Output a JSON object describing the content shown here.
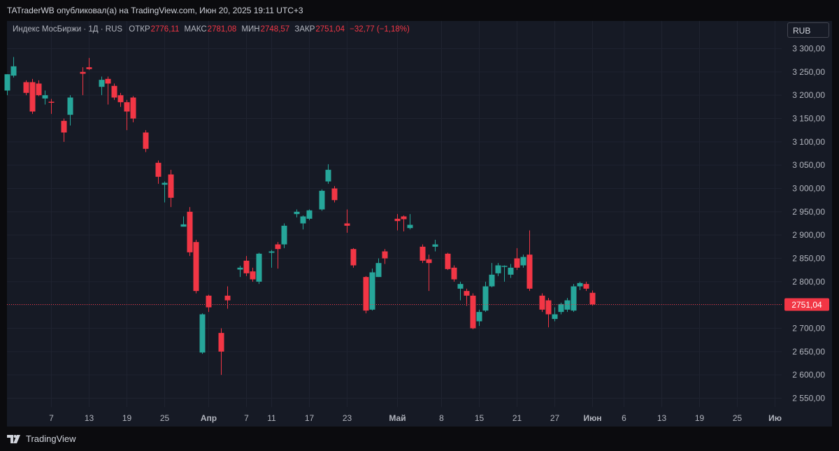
{
  "header": {
    "publisher_line": "TATraderWB опубликовал(а) на TradingView.com, Июн 20, 2025 19:11 UTC+3"
  },
  "legend": {
    "symbol": "Индекс МосБиржи · 1Д · RUS",
    "open_label": "ОТКР",
    "open_value": "2776,11",
    "high_label": "МАКС",
    "high_value": "2781,08",
    "low_label": "МИН",
    "low_value": "2748,57",
    "close_label": "ЗАКР",
    "close_value": "2751,04",
    "change": "−32,77 (−1,18%)"
  },
  "currency_button": "RUB",
  "price_label": "2751,04",
  "footer": {
    "brand": "TradingView"
  },
  "colors": {
    "up": "#26a69a",
    "down": "#f23645",
    "background": "#161a25",
    "grid": "#1f2330",
    "axis_text": "#b2b5be"
  },
  "chart_data": {
    "type": "candlestick",
    "ylim": [
      2520,
      3330
    ],
    "yticks": [
      2550,
      2600,
      2650,
      2700,
      2750,
      2800,
      2850,
      2900,
      2950,
      3000,
      3050,
      3100,
      3150,
      3200,
      3250,
      3300
    ],
    "ytick_labels": [
      "2 550,00",
      "2 600,00",
      "2 650,00",
      "2 700,00",
      "2 750,00",
      "2 800,00",
      "2 850,00",
      "2 900,00",
      "2 950,00",
      "3 000,00",
      "3 050,00",
      "3 100,00",
      "3 150,00",
      "3 200,00",
      "3 250,00",
      "3 300,00"
    ],
    "xticks": [
      {
        "day": 7,
        "label": "7",
        "bold": false
      },
      {
        "day": 13,
        "label": "13",
        "bold": false
      },
      {
        "day": 19,
        "label": "19",
        "bold": false
      },
      {
        "day": 25,
        "label": "25",
        "bold": false
      },
      {
        "day": 32,
        "label": "Апр",
        "bold": true
      },
      {
        "day": 38,
        "label": "7",
        "bold": false
      },
      {
        "day": 42,
        "label": "11",
        "bold": false
      },
      {
        "day": 48,
        "label": "17",
        "bold": false
      },
      {
        "day": 54,
        "label": "23",
        "bold": false
      },
      {
        "day": 62,
        "label": "Май",
        "bold": true
      },
      {
        "day": 69,
        "label": "8",
        "bold": false
      },
      {
        "day": 75,
        "label": "15",
        "bold": false
      },
      {
        "day": 81,
        "label": "21",
        "bold": false
      },
      {
        "day": 87,
        "label": "27",
        "bold": false
      },
      {
        "day": 93,
        "label": "Июн",
        "bold": true
      },
      {
        "day": 98,
        "label": "6",
        "bold": false
      },
      {
        "day": 104,
        "label": "13",
        "bold": false
      },
      {
        "day": 110,
        "label": "19",
        "bold": false
      },
      {
        "day": 116,
        "label": "25",
        "bold": false
      },
      {
        "day": 122,
        "label": "Ию",
        "bold": true
      }
    ],
    "last_close": 2751.04,
    "candles": [
      {
        "day": 0,
        "o": 3210,
        "h": 3245,
        "c": 3245,
        "l": 3200
      },
      {
        "day": 1,
        "o": 3242,
        "h": 3282,
        "c": 3262,
        "l": 3238
      },
      {
        "day": 3,
        "o": 3228,
        "h": 3232,
        "c": 3205,
        "l": 3200
      },
      {
        "day": 4,
        "o": 3228,
        "h": 3235,
        "c": 3165,
        "l": 3160
      },
      {
        "day": 5,
        "o": 3225,
        "h": 3232,
        "c": 3200,
        "l": 3198
      },
      {
        "day": 6,
        "o": 3193,
        "h": 3210,
        "c": 3200,
        "l": 3180
      },
      {
        "day": 7,
        "o": 3186,
        "h": 3192,
        "c": 3185,
        "l": 3160
      },
      {
        "day": 9,
        "o": 3145,
        "h": 3150,
        "c": 3120,
        "l": 3100
      },
      {
        "day": 10,
        "o": 3158,
        "h": 3200,
        "c": 3195,
        "l": 3135
      },
      {
        "day": 12,
        "o": 3250,
        "h": 3260,
        "c": 3246,
        "l": 3200
      },
      {
        "day": 13,
        "o": 3260,
        "h": 3280,
        "c": 3256,
        "l": 3254
      },
      {
        "day": 15,
        "o": 3218,
        "h": 3240,
        "c": 3233,
        "l": 3200
      },
      {
        "day": 16,
        "o": 3235,
        "h": 3240,
        "c": 3225,
        "l": 3180
      },
      {
        "day": 17,
        "o": 3220,
        "h": 3225,
        "c": 3195,
        "l": 3190
      },
      {
        "day": 18,
        "o": 3200,
        "h": 3205,
        "c": 3185,
        "l": 3175
      },
      {
        "day": 19,
        "o": 3185,
        "h": 3190,
        "c": 3165,
        "l": 3125
      },
      {
        "day": 20,
        "o": 3195,
        "h": 3198,
        "c": 3150,
        "l": 3142
      },
      {
        "day": 22,
        "o": 3120,
        "h": 3125,
        "c": 3085,
        "l": 3078
      },
      {
        "day": 24,
        "o": 3055,
        "h": 3060,
        "c": 3025,
        "l": 3010
      },
      {
        "day": 25,
        "o": 3008,
        "h": 3015,
        "c": 3012,
        "l": 2970
      },
      {
        "day": 26,
        "o": 3030,
        "h": 3040,
        "c": 2980,
        "l": 2960
      },
      {
        "day": 28,
        "o": 2918,
        "h": 2940,
        "c": 2923,
        "l": 2918
      },
      {
        "day": 29,
        "o": 2950,
        "h": 2960,
        "c": 2863,
        "l": 2855
      },
      {
        "day": 30,
        "o": 2885,
        "h": 2890,
        "c": 2780,
        "l": 2775
      },
      {
        "day": 31,
        "o": 2648,
        "h": 2732,
        "c": 2730,
        "l": 2645
      },
      {
        "day": 32,
        "o": 2770,
        "h": 2772,
        "c": 2745,
        "l": 2735
      },
      {
        "day": 34,
        "o": 2690,
        "h": 2700,
        "c": 2650,
        "l": 2600
      },
      {
        "day": 35,
        "o": 2770,
        "h": 2790,
        "c": 2760,
        "l": 2742
      },
      {
        "day": 37,
        "o": 2826,
        "h": 2834,
        "c": 2830,
        "l": 2810
      },
      {
        "day": 38,
        "o": 2845,
        "h": 2855,
        "c": 2818,
        "l": 2812
      },
      {
        "day": 39,
        "o": 2822,
        "h": 2830,
        "c": 2805,
        "l": 2800
      },
      {
        "day": 40,
        "o": 2800,
        "h": 2862,
        "c": 2860,
        "l": 2795
      },
      {
        "day": 42,
        "o": 2862,
        "h": 2868,
        "c": 2865,
        "l": 2830
      },
      {
        "day": 43,
        "o": 2880,
        "h": 2885,
        "c": 2870,
        "l": 2828
      },
      {
        "day": 44,
        "o": 2880,
        "h": 2925,
        "c": 2920,
        "l": 2872
      },
      {
        "day": 46,
        "o": 2945,
        "h": 2955,
        "c": 2950,
        "l": 2938
      },
      {
        "day": 47,
        "o": 2925,
        "h": 2942,
        "c": 2940,
        "l": 2912
      },
      {
        "day": 48,
        "o": 2935,
        "h": 2955,
        "c": 2953,
        "l": 2932
      },
      {
        "day": 50,
        "o": 2955,
        "h": 2998,
        "c": 2995,
        "l": 2952
      },
      {
        "day": 51,
        "o": 3015,
        "h": 3052,
        "c": 3040,
        "l": 3010
      },
      {
        "day": 52,
        "o": 3000,
        "h": 3005,
        "c": 2975,
        "l": 2970
      },
      {
        "day": 54,
        "o": 2925,
        "h": 2955,
        "c": 2920,
        "l": 2905
      },
      {
        "day": 55,
        "o": 2870,
        "h": 2872,
        "c": 2835,
        "l": 2830
      },
      {
        "day": 57,
        "o": 2810,
        "h": 2812,
        "c": 2738,
        "l": 2732
      },
      {
        "day": 58,
        "o": 2740,
        "h": 2828,
        "c": 2820,
        "l": 2738
      },
      {
        "day": 59,
        "o": 2810,
        "h": 2850,
        "c": 2840,
        "l": 2810
      },
      {
        "day": 60,
        "o": 2865,
        "h": 2870,
        "c": 2850,
        "l": 2838
      },
      {
        "day": 62,
        "o": 2935,
        "h": 2945,
        "c": 2930,
        "l": 2910
      },
      {
        "day": 63,
        "o": 2940,
        "h": 2942,
        "c": 2934,
        "l": 2908
      },
      {
        "day": 64,
        "o": 2915,
        "h": 2945,
        "c": 2922,
        "l": 2912
      },
      {
        "day": 66,
        "o": 2875,
        "h": 2880,
        "c": 2845,
        "l": 2840
      },
      {
        "day": 67,
        "o": 2848,
        "h": 2858,
        "c": 2840,
        "l": 2780
      },
      {
        "day": 68,
        "o": 2875,
        "h": 2890,
        "c": 2880,
        "l": 2865
      },
      {
        "day": 70,
        "o": 2860,
        "h": 2862,
        "c": 2827,
        "l": 2825
      },
      {
        "day": 71,
        "o": 2830,
        "h": 2835,
        "c": 2805,
        "l": 2800
      },
      {
        "day": 72,
        "o": 2785,
        "h": 2800,
        "c": 2795,
        "l": 2760
      },
      {
        "day": 73,
        "o": 2780,
        "h": 2785,
        "c": 2770,
        "l": 2748
      },
      {
        "day": 74,
        "o": 2770,
        "h": 2775,
        "c": 2700,
        "l": 2698
      },
      {
        "day": 75,
        "o": 2715,
        "h": 2740,
        "c": 2735,
        "l": 2705
      },
      {
        "day": 76,
        "o": 2738,
        "h": 2800,
        "c": 2790,
        "l": 2735
      },
      {
        "day": 77,
        "o": 2790,
        "h": 2840,
        "c": 2815,
        "l": 2788
      },
      {
        "day": 78,
        "o": 2818,
        "h": 2840,
        "c": 2835,
        "l": 2812
      },
      {
        "day": 79,
        "o": 2832,
        "h": 2835,
        "c": 2834,
        "l": 2800
      },
      {
        "day": 80,
        "o": 2815,
        "h": 2838,
        "c": 2830,
        "l": 2808
      },
      {
        "day": 81,
        "o": 2850,
        "h": 2872,
        "c": 2830,
        "l": 2825
      },
      {
        "day": 82,
        "o": 2835,
        "h": 2858,
        "c": 2853,
        "l": 2830
      },
      {
        "day": 83,
        "o": 2858,
        "h": 2910,
        "c": 2785,
        "l": 2780
      },
      {
        "day": 85,
        "o": 2770,
        "h": 2775,
        "c": 2740,
        "l": 2735
      },
      {
        "day": 86,
        "o": 2760,
        "h": 2765,
        "c": 2730,
        "l": 2702
      },
      {
        "day": 87,
        "o": 2720,
        "h": 2745,
        "c": 2730,
        "l": 2715
      },
      {
        "day": 88,
        "o": 2735,
        "h": 2755,
        "c": 2752,
        "l": 2730
      },
      {
        "day": 89,
        "o": 2740,
        "h": 2765,
        "c": 2760,
        "l": 2735
      },
      {
        "day": 90,
        "o": 2738,
        "h": 2795,
        "c": 2790,
        "l": 2735
      },
      {
        "day": 91,
        "o": 2790,
        "h": 2800,
        "c": 2797,
        "l": 2782
      },
      {
        "day": 92,
        "o": 2795,
        "h": 2800,
        "c": 2785,
        "l": 2780
      },
      {
        "day": 93,
        "o": 2776.11,
        "h": 2781.08,
        "c": 2751.04,
        "l": 2748.57
      }
    ]
  }
}
